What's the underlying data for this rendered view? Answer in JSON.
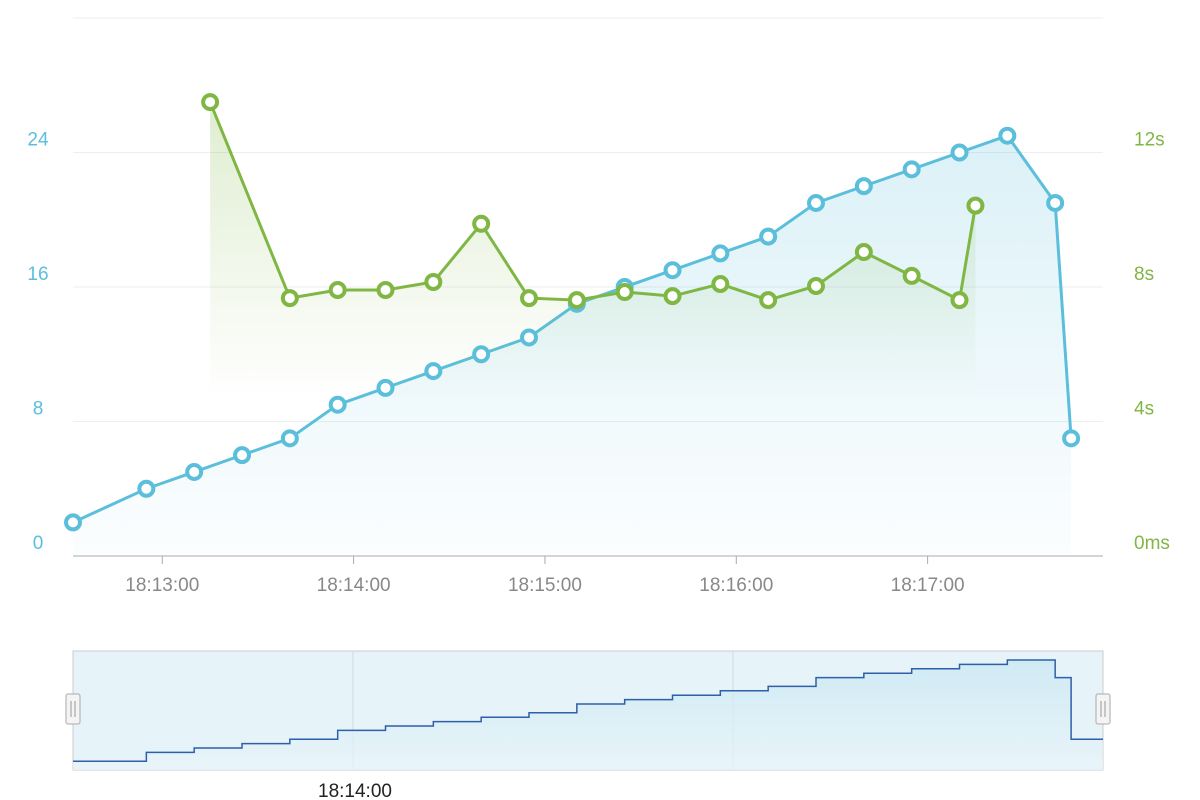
{
  "chart_data": {
    "type": "line",
    "xlim": [
      "18:12:32",
      "18:17:55"
    ],
    "xticks": [
      "18:13:00",
      "18:14:00",
      "18:15:00",
      "18:16:00",
      "18:17:00"
    ],
    "ylim": [
      0,
      32
    ],
    "yticks": [
      0,
      8,
      16,
      24
    ],
    "y2lim": [
      0,
      16
    ],
    "y2ticks": [
      {
        "value": 0,
        "label": "0ms"
      },
      {
        "value": 4,
        "label": "4s"
      },
      {
        "value": 8,
        "label": "8s"
      },
      {
        "value": 12,
        "label": "12s"
      }
    ],
    "grid": true,
    "series": [
      {
        "color": "#5bbfdc",
        "x": [
          "18:12:32",
          "18:12:55",
          "18:13:10",
          "18:13:25",
          "18:13:40",
          "18:13:55",
          "18:14:10",
          "18:14:25",
          "18:14:40",
          "18:14:55",
          "18:15:10",
          "18:15:25",
          "18:15:40",
          "18:15:55",
          "18:16:10",
          "18:16:25",
          "18:16:40",
          "18:16:55",
          "18:17:10",
          "18:17:25",
          "18:17:40",
          "18:17:45"
        ],
        "values": [
          2,
          4,
          5,
          6,
          7,
          9,
          10,
          11,
          12,
          13,
          15,
          16,
          17,
          18,
          19,
          21,
          22,
          23,
          24,
          25,
          21,
          7
        ]
      },
      {
        "color": "#80b744",
        "axis": "y2",
        "x": [
          "18:13:15",
          "18:13:40",
          "18:13:55",
          "18:14:10",
          "18:14:25",
          "18:14:40",
          "18:14:55",
          "18:15:10",
          "18:15:25",
          "18:15:40",
          "18:15:55",
          "18:16:10",
          "18:16:25",
          "18:16:40",
          "18:16:55",
          "18:17:10",
          "18:17:15"
        ],
        "values": [
          13.5,
          7.67,
          7.91,
          7.91,
          8.15,
          9.88,
          7.67,
          7.61,
          7.85,
          7.73,
          8.09,
          7.61,
          8.03,
          9.04,
          8.33,
          7.61,
          10.42
        ]
      }
    ],
    "navigator": {
      "labels": [
        "18:14:00"
      ]
    }
  }
}
